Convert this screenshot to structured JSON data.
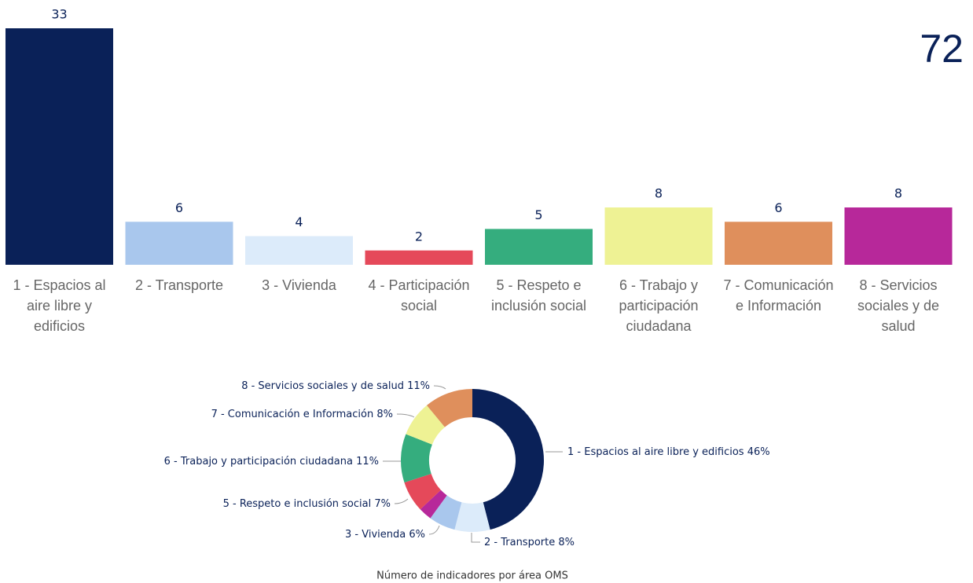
{
  "kpi": 72,
  "chart_data": [
    {
      "type": "bar",
      "categories": [
        "1 - Espacios al aire libre y edificios",
        "2 - Transporte",
        "3 - Vivienda",
        "4 - Participación social",
        "5 - Respeto e inclusión social",
        "6 - Trabajo y participación ciudadana",
        "7 - Comunicación e Información",
        "8 - Servicios sociales y de salud"
      ],
      "values": [
        33,
        6,
        4,
        2,
        5,
        8,
        6,
        8
      ],
      "colors": [
        "#0a2158",
        "#a9c7ed",
        "#dcebfa",
        "#e5495a",
        "#35ad7e",
        "#eef294",
        "#df8f5c",
        "#b7289a"
      ]
    },
    {
      "type": "pie",
      "title": "Número de indicadores por área OMS",
      "categories": [
        "1 - Espacios al aire libre y edificios",
        "2 - Transporte",
        "3 - Vivienda",
        null,
        "5 - Respeto e inclusión social",
        "6 - Trabajo y participación ciudadana",
        "7 - Comunicación e Información",
        "8 - Servicios sociales y de salud"
      ],
      "values": [
        46,
        8,
        6,
        3,
        7,
        11,
        8,
        11
      ],
      "value_labels": [
        "46%",
        "8%",
        "6%",
        null,
        "7%",
        "11%",
        "8%",
        "11%"
      ],
      "colors": [
        "#0a2158",
        "#dcebfa",
        "#a9c7ed",
        "#b7289a",
        "#e5495a",
        "#35ad7e",
        "#eef294",
        "#df8f5c"
      ]
    }
  ]
}
